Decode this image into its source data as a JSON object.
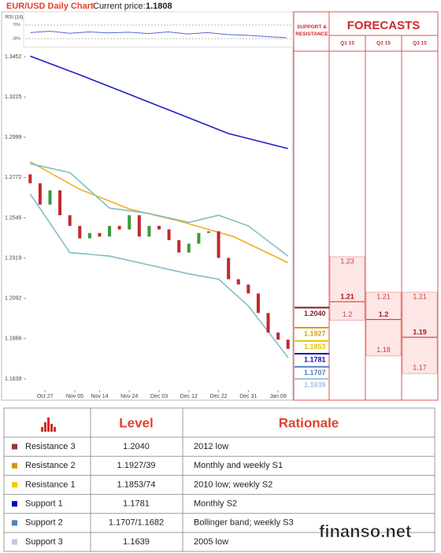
{
  "header": {
    "title": "EUR/USD Daily Chart",
    "price_label": "Current price:",
    "price": 1.1808
  },
  "chart_data": [
    {
      "type": "line",
      "title": "RSI (14)",
      "xlim": [
        -1,
        53
      ],
      "ylim": [
        0,
        100
      ],
      "yticks": [
        {
          "value": 70,
          "label": "70%"
        },
        {
          "value": 30,
          "label": "30%"
        }
      ],
      "lines": [
        {
          "color": "#5566d8",
          "x": [
            0,
            4,
            8,
            12,
            16,
            20,
            24,
            28,
            32,
            36,
            40,
            44,
            48,
            52
          ],
          "values": [
            48,
            52,
            46,
            50,
            47,
            49,
            45,
            50,
            44,
            48,
            42,
            40,
            36,
            33
          ]
        }
      ]
    },
    {
      "type": "candlestick",
      "xlim": [
        -1,
        53
      ],
      "ylim": [
        1.1577,
        1.3483
      ],
      "yticks": [
        1.3452,
        1.3225,
        1.2999,
        1.2772,
        1.2545,
        1.2319,
        1.2092,
        1.1866,
        1.1639
      ],
      "xticks": [
        {
          "value": 3,
          "label": "Oct 27"
        },
        {
          "value": 9,
          "label": "Nov 05"
        },
        {
          "value": 14,
          "label": "Nov 14"
        },
        {
          "value": 20,
          "label": "Nov 24"
        },
        {
          "value": 26,
          "label": "Dec 03"
        },
        {
          "value": 32,
          "label": "Dec 12"
        },
        {
          "value": 38,
          "label": "Dec 22"
        },
        {
          "value": 44,
          "label": "Dec 31"
        },
        {
          "value": 50,
          "label": "Jan 09"
        }
      ],
      "up_color": "#3a9a3a",
      "down_color": "#c0282d",
      "x": [
        0,
        2,
        4,
        6,
        8,
        10,
        12,
        14,
        16,
        18,
        20,
        22,
        24,
        26,
        28,
        30,
        32,
        34,
        36,
        38,
        40,
        42,
        44,
        46,
        48,
        50,
        52
      ],
      "open": [
        1.279,
        1.274,
        1.262,
        1.27,
        1.256,
        1.25,
        1.243,
        1.246,
        1.244,
        1.25,
        1.248,
        1.256,
        1.244,
        1.25,
        1.248,
        1.242,
        1.235,
        1.24,
        1.246,
        1.247,
        1.232,
        1.22,
        1.217,
        1.212,
        1.201,
        1.19,
        1.186
      ],
      "close": [
        1.274,
        1.262,
        1.27,
        1.256,
        1.25,
        1.243,
        1.246,
        1.244,
        1.25,
        1.248,
        1.256,
        1.244,
        1.25,
        1.248,
        1.242,
        1.235,
        1.24,
        1.246,
        1.247,
        1.232,
        1.22,
        1.217,
        1.212,
        1.201,
        1.19,
        1.186,
        1.1808
      ],
      "lines": [
        {
          "color": "#2020c8",
          "x": [
            0,
            10,
            20,
            30,
            40,
            52
          ],
          "values": [
            1.3455,
            1.335,
            1.324,
            1.313,
            1.302,
            1.2935
          ]
        },
        {
          "color": "#f0b020",
          "x": [
            0,
            10,
            20,
            30,
            41,
            52
          ],
          "values": [
            1.2861,
            1.2706,
            1.2595,
            1.2528,
            1.244,
            1.2293
          ]
        },
        {
          "color": "#7fbfc4",
          "x": [
            0,
            8,
            16,
            24,
            32,
            38,
            44,
            52
          ],
          "values": [
            1.285,
            1.28,
            1.26,
            1.257,
            1.252,
            1.256,
            1.25,
            1.233
          ]
        },
        {
          "color": "#7fbfc4",
          "x": [
            0,
            8,
            16,
            24,
            32,
            38,
            44,
            52
          ],
          "values": [
            1.268,
            1.235,
            1.233,
            1.228,
            1.223,
            1.22,
            1.205,
            1.176
          ]
        }
      ]
    }
  ],
  "forecasts": {
    "title": "FORECASTS",
    "levels_header": "SUPPORT & RESISTANCE",
    "columns": [
      {
        "name": "Q1 15",
        "high": 1.23,
        "base": 1.21,
        "low": 1.2
      },
      {
        "name": "Q2 15",
        "high": 1.21,
        "base": 1.2,
        "low": 1.18
      },
      {
        "name": "Q3 15",
        "high": 1.21,
        "base": 1.19,
        "low": 1.17
      }
    ]
  },
  "levels": [
    {
      "value": 1.204,
      "label": "1.2040",
      "color": "#7a1a2a"
    },
    {
      "value": 1.1927,
      "label": "1.1927",
      "color": "#d4a017"
    },
    {
      "value": 1.1853,
      "label": "1.1853",
      "color": "#e8c000"
    },
    {
      "value": 1.1781,
      "label": "1.1781",
      "color": "#1010c0"
    },
    {
      "value": 1.1707,
      "label": "1.1707",
      "color": "#4f81bd"
    },
    {
      "value": 1.1639,
      "label": "1.1639",
      "color": "#a8c0dc"
    }
  ],
  "table": {
    "header": [
      "Level",
      "Rationale"
    ],
    "rows": [
      {
        "name": "Resistance 3",
        "color": "#943634",
        "level": "1.2040",
        "rationale": "2012 low"
      },
      {
        "name": "Resistance 2",
        "color": "#c99a06",
        "level": "1.1927/39",
        "rationale": "Monthly and weekly S1"
      },
      {
        "name": "Resistance 1",
        "color": "#f5cc00",
        "level": "1.1853/74",
        "rationale": "2010 low; weekly S2"
      },
      {
        "name": "Support 1",
        "color": "#0000cc",
        "level": "1.1781",
        "rationale": "Monthly S2"
      },
      {
        "name": "Support 2",
        "color": "#4f81bd",
        "level": "1.1707/1.1682",
        "rationale": "Bollinger band; weekly S3"
      },
      {
        "name": "Support 3",
        "color": "#b8cce4",
        "level": "1.1639",
        "rationale": "2005 low"
      }
    ]
  },
  "watermark": "finanso.net"
}
